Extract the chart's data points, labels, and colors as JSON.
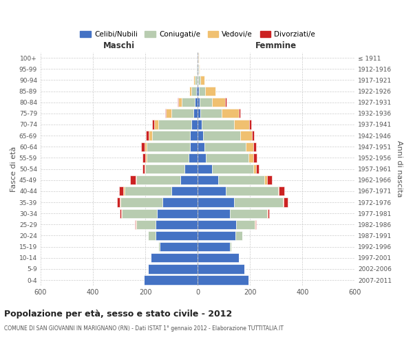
{
  "age_groups": [
    "0-4",
    "5-9",
    "10-14",
    "15-19",
    "20-24",
    "25-29",
    "30-34",
    "35-39",
    "40-44",
    "45-49",
    "50-54",
    "55-59",
    "60-64",
    "65-69",
    "70-74",
    "75-79",
    "80-84",
    "85-89",
    "90-94",
    "95-99",
    "100+"
  ],
  "birth_years": [
    "2007-2011",
    "2002-2006",
    "1997-2001",
    "1992-1996",
    "1987-1991",
    "1982-1986",
    "1977-1981",
    "1972-1976",
    "1967-1971",
    "1962-1966",
    "1957-1961",
    "1952-1956",
    "1947-1951",
    "1942-1946",
    "1937-1941",
    "1932-1936",
    "1927-1931",
    "1922-1926",
    "1917-1921",
    "1912-1916",
    "≤ 1911"
  ],
  "male_celibi": [
    205,
    190,
    180,
    145,
    160,
    160,
    155,
    135,
    100,
    65,
    50,
    35,
    30,
    30,
    25,
    15,
    10,
    5,
    3,
    2,
    2
  ],
  "male_coniugati": [
    0,
    0,
    0,
    5,
    30,
    75,
    135,
    160,
    180,
    170,
    150,
    160,
    165,
    145,
    125,
    85,
    50,
    18,
    8,
    3,
    1
  ],
  "male_vedovi": [
    0,
    0,
    0,
    0,
    0,
    2,
    2,
    3,
    5,
    3,
    3,
    5,
    8,
    12,
    15,
    20,
    15,
    10,
    5,
    1,
    0
  ],
  "male_divorziati": [
    0,
    0,
    0,
    0,
    0,
    3,
    5,
    10,
    15,
    20,
    8,
    10,
    12,
    10,
    8,
    3,
    2,
    0,
    0,
    0,
    0
  ],
  "female_nubili": [
    195,
    178,
    158,
    123,
    143,
    148,
    123,
    138,
    108,
    78,
    55,
    30,
    25,
    20,
    15,
    10,
    8,
    5,
    3,
    2,
    2
  ],
  "female_coniugate": [
    0,
    0,
    0,
    5,
    28,
    70,
    143,
    188,
    198,
    178,
    158,
    163,
    158,
    143,
    123,
    83,
    48,
    23,
    8,
    3,
    1
  ],
  "female_vedove": [
    0,
    0,
    0,
    0,
    0,
    2,
    2,
    3,
    5,
    8,
    10,
    20,
    30,
    45,
    60,
    65,
    50,
    40,
    15,
    3,
    1
  ],
  "female_divorziate": [
    0,
    0,
    0,
    0,
    0,
    3,
    5,
    15,
    20,
    20,
    10,
    12,
    10,
    8,
    8,
    5,
    3,
    0,
    0,
    0,
    0
  ],
  "color_celibi": "#4472c4",
  "color_coniugati": "#b8ccb0",
  "color_vedovi": "#f0c070",
  "color_divorziati": "#cc2222",
  "title": "Popolazione per età, sesso e stato civile - 2012",
  "subtitle": "COMUNE DI SAN GIOVANNI IN MARIGNANO (RN) - Dati ISTAT 1° gennaio 2012 - Elaborazione TUTTITALIA.IT",
  "xlabel_left": "Maschi",
  "xlabel_right": "Femmine",
  "ylabel_left": "Fasce di età",
  "ylabel_right": "Anni di nascita",
  "xlim": 600,
  "bg_color": "#ffffff",
  "grid_color": "#cccccc"
}
